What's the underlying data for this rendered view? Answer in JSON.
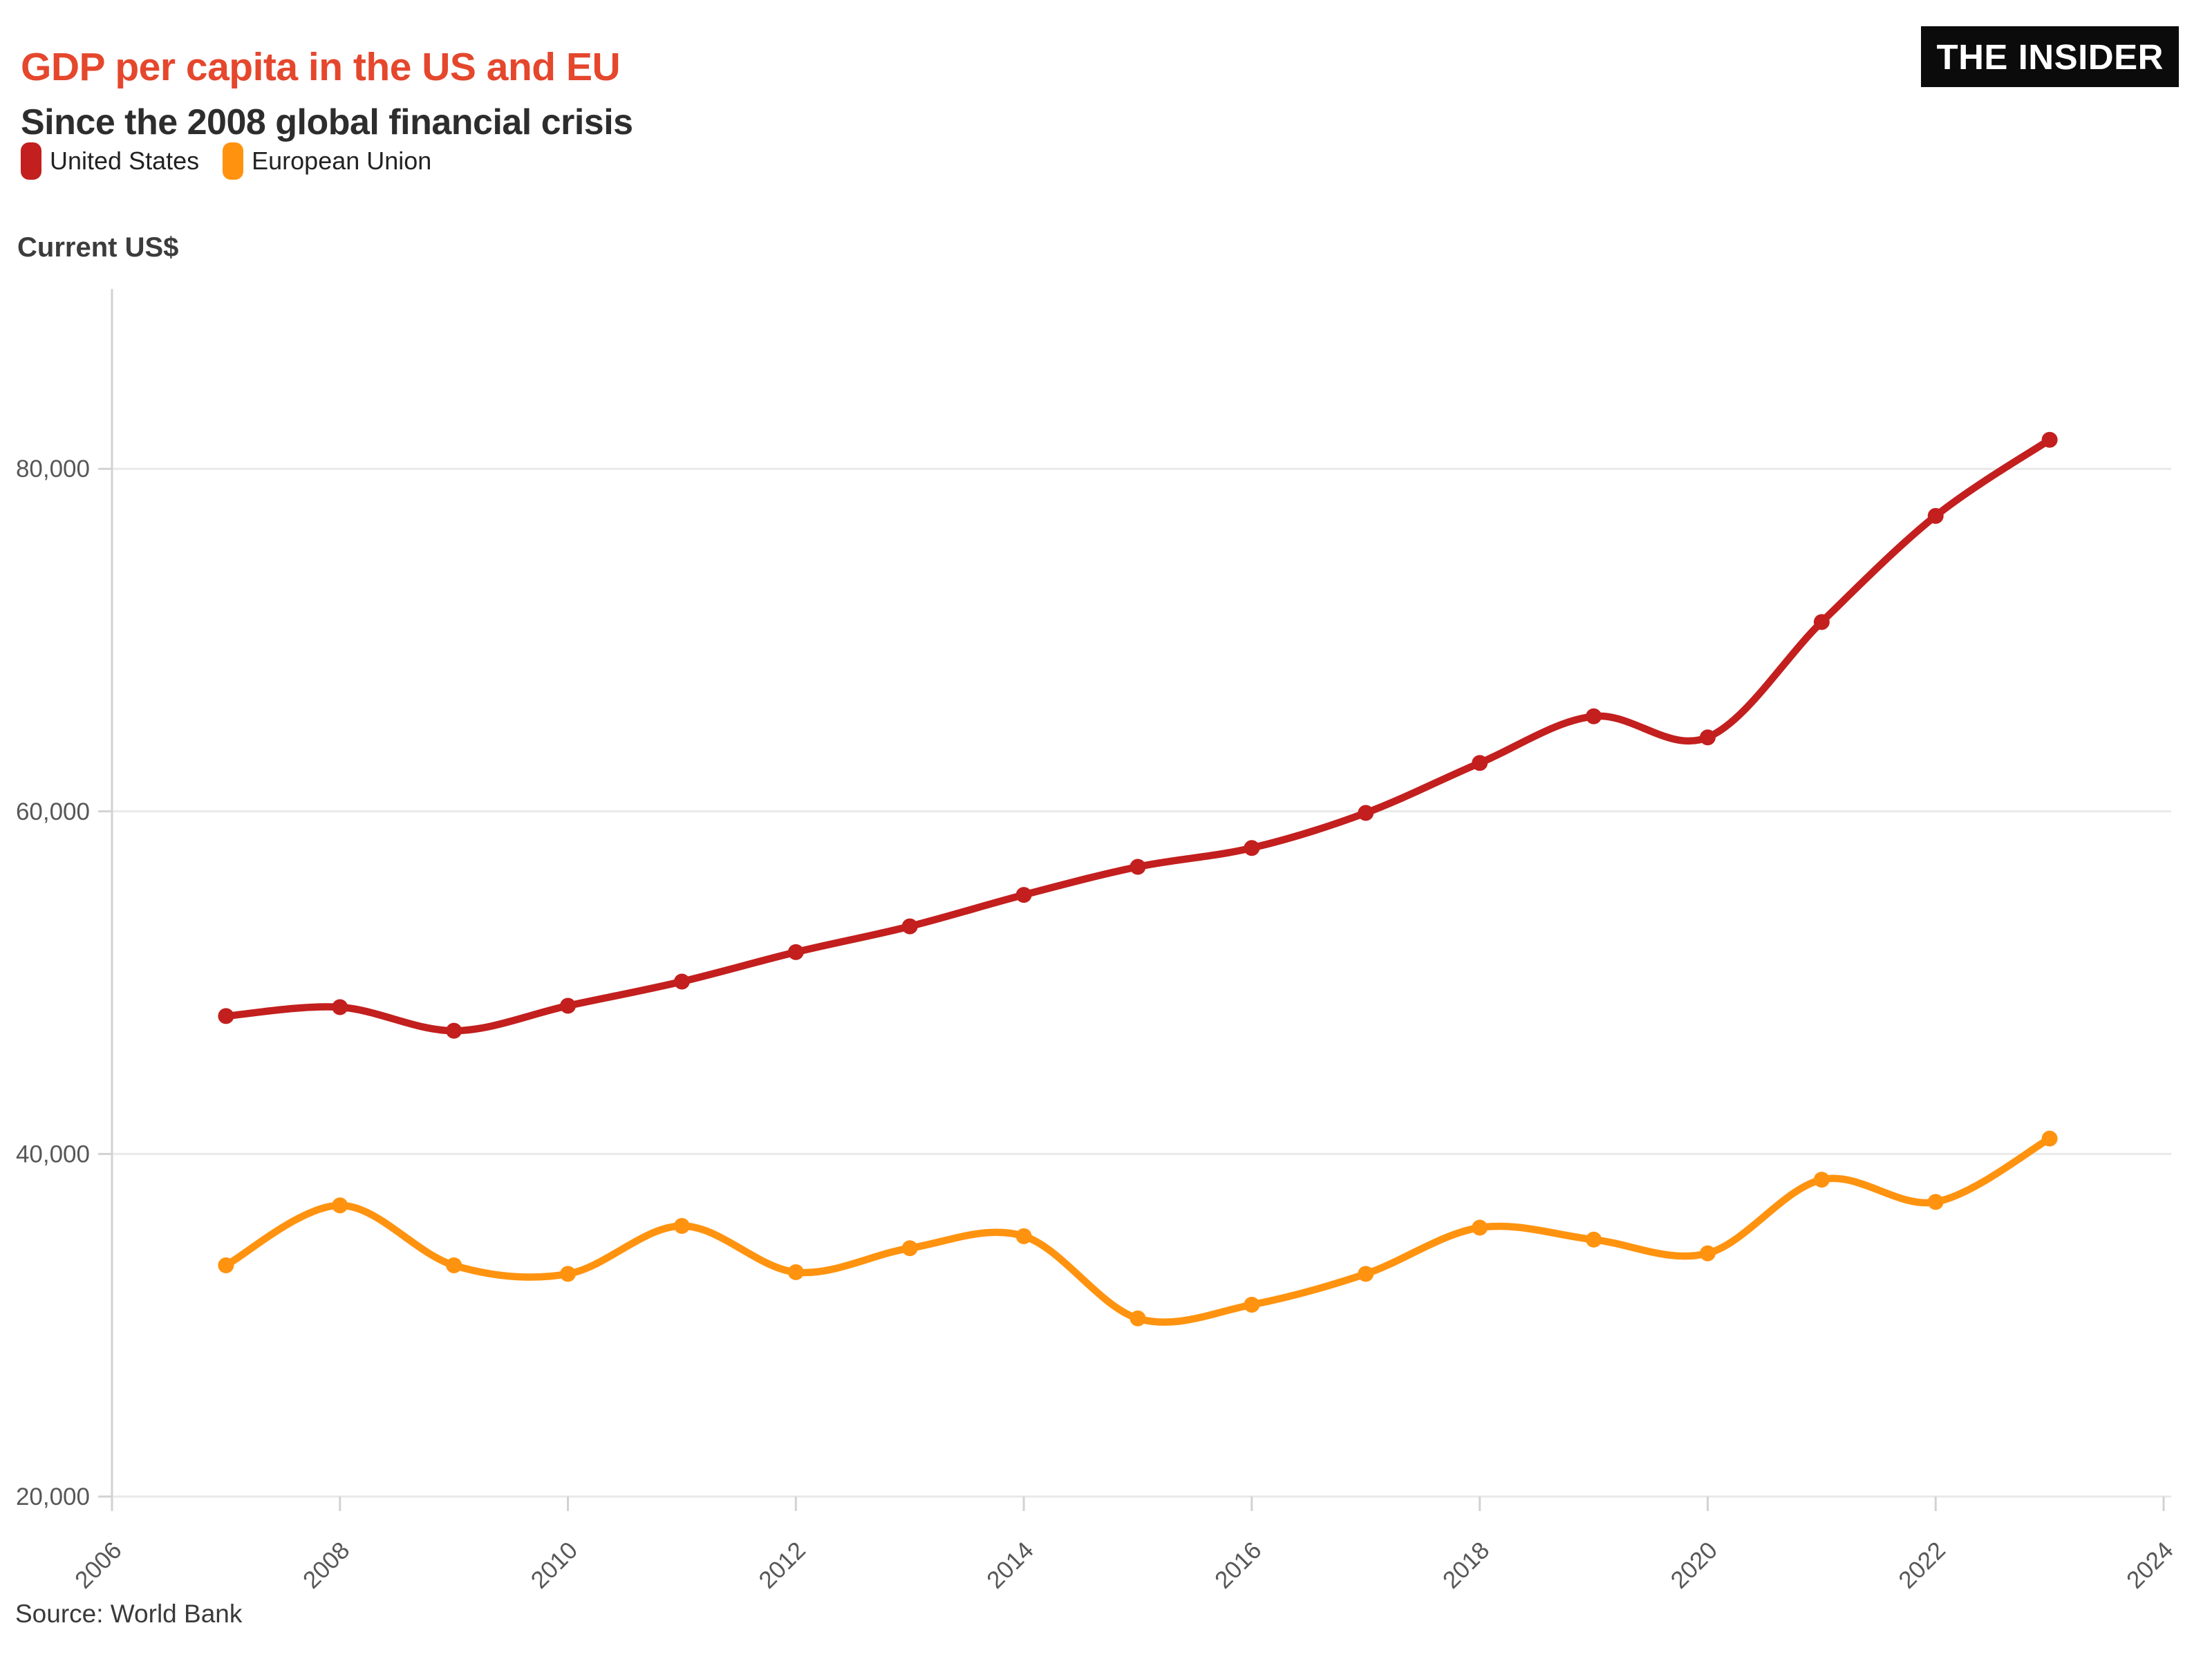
{
  "header": {
    "title": "GDP per capita in the US and EU",
    "subtitle": "Since the 2008 global financial crisis",
    "brand": "THE INSIDER"
  },
  "legend": {
    "items": [
      {
        "label": "United States",
        "color": "#c21f1e"
      },
      {
        "label": "European Union",
        "color": "#ff930f"
      }
    ]
  },
  "y_axis_title": "Current US$",
  "source": "Source: World Bank",
  "colors": {
    "title": "#e5472d",
    "subtitle": "#2d2d2d",
    "grid": "#e9e9e9",
    "axis": "#d2d2d2",
    "tick_label": "#575757"
  },
  "chart_data": {
    "type": "line",
    "title": "GDP per capita in the US and EU",
    "subtitle": "Since the 2008 global financial crisis",
    "xlabel": "",
    "ylabel": "Current US$",
    "x": [
      2007,
      2008,
      2009,
      2010,
      2011,
      2012,
      2013,
      2014,
      2015,
      2016,
      2017,
      2018,
      2019,
      2020,
      2021,
      2022,
      2023
    ],
    "series": [
      {
        "name": "United States",
        "color": "#c21f1e",
        "values": [
          48050,
          48570,
          47195,
          48650,
          50065,
          51785,
          53290,
          55125,
          56765,
          57865,
          59910,
          62825,
          65550,
          64320,
          71055,
          77250,
          81695
        ]
      },
      {
        "name": "European Union",
        "color": "#ff930f",
        "values": [
          33500,
          37000,
          33500,
          33000,
          35800,
          33100,
          34500,
          35200,
          30400,
          31200,
          33000,
          35700,
          35000,
          34200,
          38500,
          37200,
          40900
        ]
      }
    ],
    "xlim": [
      2006,
      2024
    ],
    "ylim": [
      20000,
      90500
    ],
    "xticks": [
      2006,
      2008,
      2010,
      2012,
      2014,
      2016,
      2018,
      2020,
      2022,
      2024
    ],
    "yticks": [
      20000,
      40000,
      60000,
      80000
    ],
    "y_tick_labels": [
      "20,000",
      "40,000",
      "60,000",
      "80,000"
    ],
    "grid": true,
    "point_markers": true,
    "legend_position": "top-left",
    "source": "Source: World Bank"
  }
}
